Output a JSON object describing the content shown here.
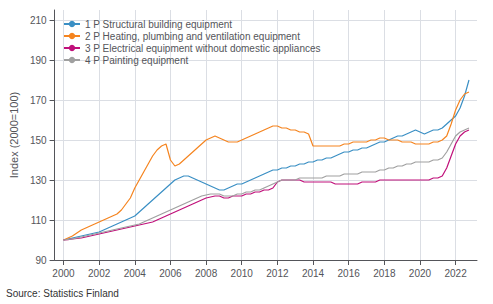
{
  "chart_data": {
    "type": "line",
    "y_label": "Index (2000=100)",
    "source": "Source: Statistics Finland",
    "xlim": [
      1999.5,
      2023.2
    ],
    "xticks": [
      2000,
      2002,
      2004,
      2006,
      2008,
      2010,
      2012,
      2014,
      2016,
      2018,
      2020,
      2022
    ],
    "ylim": [
      90,
      215
    ],
    "yticks": [
      90,
      110,
      130,
      150,
      170,
      190,
      210
    ],
    "grid": true,
    "legend": "upper left",
    "x": [
      2000,
      2000.25,
      2000.5,
      2000.75,
      2001,
      2001.25,
      2001.5,
      2001.75,
      2002,
      2002.25,
      2002.5,
      2002.75,
      2003,
      2003.25,
      2003.5,
      2003.75,
      2004,
      2004.25,
      2004.5,
      2004.75,
      2005,
      2005.25,
      2005.5,
      2005.75,
      2006,
      2006.25,
      2006.5,
      2006.75,
      2007,
      2007.25,
      2007.5,
      2007.75,
      2008,
      2008.25,
      2008.5,
      2008.75,
      2009,
      2009.25,
      2009.5,
      2009.75,
      2010,
      2010.25,
      2010.5,
      2010.75,
      2011,
      2011.25,
      2011.5,
      2011.75,
      2012,
      2012.25,
      2012.5,
      2012.75,
      2013,
      2013.25,
      2013.5,
      2013.75,
      2014,
      2014.25,
      2014.5,
      2014.75,
      2015,
      2015.25,
      2015.5,
      2015.75,
      2016,
      2016.25,
      2016.5,
      2016.75,
      2017,
      2017.25,
      2017.5,
      2017.75,
      2018,
      2018.25,
      2018.5,
      2018.75,
      2019,
      2019.25,
      2019.5,
      2019.75,
      2020,
      2020.25,
      2020.5,
      2020.75,
      2021,
      2021.25,
      2021.5,
      2021.75,
      2022,
      2022.25,
      2022.5,
      2022.75
    ],
    "series": [
      {
        "name": "1 P Structural building equipment",
        "color": "#3a8fc4",
        "values": [
          100,
          100.5,
          101,
          101.5,
          102,
          102.5,
          103,
          103.5,
          104,
          105,
          106,
          107,
          108,
          109,
          110,
          111,
          112,
          114,
          116,
          118,
          120,
          122,
          124,
          126,
          128,
          130,
          131,
          132,
          132,
          131,
          130,
          129,
          128,
          127,
          126,
          125,
          125,
          126,
          127,
          128,
          128,
          129,
          130,
          131,
          132,
          133,
          134,
          135,
          135,
          136,
          136,
          137,
          137,
          138,
          138,
          139,
          139,
          140,
          140,
          141,
          141,
          142,
          143,
          144,
          144,
          145,
          145,
          146,
          146,
          147,
          148,
          149,
          149,
          150,
          151,
          152,
          152,
          153,
          154,
          155,
          154,
          153,
          154,
          155,
          155,
          156,
          158,
          160,
          162,
          166,
          172,
          180
        ]
      },
      {
        "name": "2 P Heating, plumbing and ventilation equipment",
        "color": "#f5841f",
        "values": [
          100,
          101,
          102,
          103.5,
          105,
          106,
          107,
          108,
          109,
          110,
          111,
          112,
          113,
          115,
          118,
          121,
          126,
          130,
          134,
          138,
          142,
          145,
          147,
          148,
          140,
          137,
          138,
          140,
          142,
          144,
          146,
          148,
          150,
          151,
          152,
          151,
          150,
          149,
          149,
          149,
          150,
          151,
          152,
          153,
          154,
          155,
          156,
          157,
          157,
          156,
          156,
          155,
          155,
          154,
          154,
          153,
          147,
          147,
          147,
          147,
          147,
          147,
          147,
          148,
          148,
          149,
          149,
          149,
          149,
          150,
          150,
          151,
          151,
          150,
          150,
          150,
          149,
          149,
          149,
          148,
          148,
          148,
          148,
          149,
          149,
          150,
          152,
          158,
          165,
          170,
          173,
          174
        ]
      },
      {
        "name": "3 P Electrical equipment without domestic appliances",
        "color": "#c0107a",
        "values": [
          100,
          100.2,
          100.5,
          100.8,
          101,
          101.5,
          102,
          102.5,
          103,
          103.5,
          104,
          104.5,
          105,
          105.5,
          106,
          106.5,
          107,
          107.5,
          108,
          108.5,
          109,
          110,
          111,
          112,
          113,
          114,
          115,
          116,
          117,
          118,
          119,
          120,
          121,
          121.5,
          122,
          122,
          121,
          121,
          122,
          122,
          122,
          123,
          123,
          124,
          124,
          125,
          125,
          126,
          129,
          130,
          130,
          130,
          130,
          130,
          129,
          129,
          129,
          129,
          129,
          129,
          129,
          128,
          128,
          128,
          128,
          128,
          128,
          129,
          129,
          129,
          129,
          130,
          130,
          130,
          130,
          130,
          130,
          130,
          130,
          130,
          130,
          130,
          130,
          131,
          131,
          132,
          136,
          142,
          148,
          152,
          154,
          155
        ]
      },
      {
        "name": "4 P Painting equipment",
        "color": "#a0a0a0",
        "values": [
          100,
          100.3,
          100.6,
          101,
          101.5,
          102,
          102.5,
          103,
          103.5,
          104,
          104.5,
          105,
          105.5,
          106,
          106.5,
          107,
          107.5,
          108,
          109,
          110,
          111,
          112,
          113,
          114,
          115,
          116,
          117,
          118,
          119,
          120,
          121,
          122,
          122.5,
          123,
          123,
          123,
          122,
          122,
          122,
          123,
          123,
          124,
          124,
          125,
          125,
          126,
          127,
          128,
          129,
          130,
          130,
          130,
          130,
          131,
          131,
          131,
          131,
          131,
          131,
          132,
          132,
          132,
          132,
          133,
          133,
          133,
          133,
          134,
          134,
          134,
          134,
          135,
          135,
          136,
          136,
          137,
          137,
          138,
          138,
          139,
          139,
          139,
          139,
          140,
          140,
          141,
          144,
          148,
          152,
          154,
          155,
          156
        ]
      }
    ]
  }
}
